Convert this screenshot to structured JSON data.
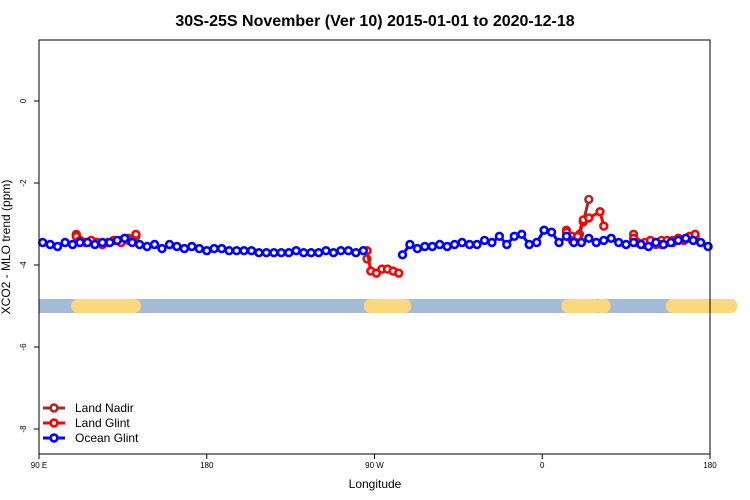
{
  "chart_data": {
    "type": "line",
    "title": "30S-25S November (Ver 10)   2015-01-01 to 2020-12-18",
    "xlabel": "Longitude",
    "ylabel": "XCO2 - MLO trend (ppm)",
    "xlim": [
      90,
      450
    ],
    "ylim": [
      -8.3,
      1.5
    ],
    "x_ticks": [
      {
        "value": 90,
        "label": "90 E"
      },
      {
        "value": 180,
        "label": "180"
      },
      {
        "value": 270,
        "label": "90 W"
      },
      {
        "value": 360,
        "label": "0"
      },
      {
        "value": 450,
        "label": "180"
      }
    ],
    "x_ticks_minor": [
      90,
      450
    ],
    "y_ticks": [
      {
        "value": 0,
        "label": "0"
      },
      {
        "value": -2,
        "label": "-2"
      },
      {
        "value": -4,
        "label": "-4"
      },
      {
        "value": -6,
        "label": "-6"
      },
      {
        "value": -8,
        "label": "-8"
      }
    ],
    "land_mask": {
      "y": -5.0,
      "ocean_color": "#a4bcd8",
      "land_color": "#fcd87c",
      "land_segments": [
        [
          111,
          141
        ],
        [
          268,
          286
        ],
        [
          374,
          388
        ],
        [
          392,
          393
        ],
        [
          430,
          461
        ]
      ]
    },
    "legend_position": "bottom-left",
    "series": [
      {
        "name": "Land Nadir",
        "color": "#a52a2a",
        "x": [
          110,
          112,
          115,
          118,
          121,
          124,
          127,
          130,
          134,
          138,
          142,
          266,
          373,
          376,
          380,
          382,
          385,
          409,
          411,
          415,
          418,
          421,
          424,
          427,
          430,
          433,
          436,
          439,
          442
        ],
        "y": [
          -3.25,
          -3.4,
          -3.45,
          -3.4,
          -3.45,
          -3.5,
          -3.45,
          -3.4,
          -3.4,
          -3.35,
          -3.3,
          -3.85,
          -3.15,
          -3.3,
          -3.25,
          -2.95,
          -2.4,
          -3.25,
          -3.45,
          -3.5,
          -3.45,
          -3.5,
          -3.4,
          -3.45,
          -3.4,
          -3.35,
          -3.4,
          -3.35,
          -3.3
        ]
      },
      {
        "name": "Land Glint",
        "color": "#ff0000",
        "x": [
          110,
          112,
          115,
          118,
          121,
          124,
          127,
          130,
          134,
          138,
          142,
          266,
          268,
          271,
          274,
          277,
          280,
          283,
          373,
          376,
          379,
          382,
          385,
          391,
          393,
          409,
          411,
          415,
          418,
          421,
          424,
          427,
          430,
          433,
          436,
          439,
          442
        ],
        "y": [
          -3.3,
          -3.4,
          -3.45,
          -3.4,
          -3.45,
          -3.5,
          -3.45,
          -3.4,
          -3.45,
          -3.4,
          -3.25,
          -3.65,
          -4.15,
          -4.2,
          -4.1,
          -4.1,
          -4.15,
          -4.2,
          -3.2,
          -3.4,
          -3.3,
          -2.9,
          -2.85,
          -2.7,
          -3.05,
          -3.35,
          -3.45,
          -3.45,
          -3.4,
          -3.45,
          -3.5,
          -3.4,
          -3.45,
          -3.35,
          -3.4,
          -3.3,
          -3.25
        ]
      },
      {
        "name": "Ocean Glint",
        "color": "#0000ff",
        "x": [
          92,
          96,
          100,
          104,
          108,
          112,
          116,
          120,
          124,
          128,
          132,
          136,
          140,
          144,
          148,
          152,
          156,
          160,
          164,
          168,
          172,
          176,
          180,
          184,
          188,
          192,
          196,
          200,
          204,
          208,
          212,
          216,
          220,
          224,
          228,
          232,
          236,
          240,
          244,
          248,
          252,
          256,
          260,
          264,
          285,
          289,
          293,
          297,
          301,
          305,
          309,
          313,
          317,
          321,
          325,
          329,
          333,
          337,
          341,
          345,
          349,
          353,
          357,
          361,
          365,
          369,
          373,
          377,
          381,
          385,
          389,
          393,
          397,
          401,
          405,
          409,
          413,
          417,
          421,
          425,
          429,
          433,
          437,
          441,
          445,
          449
        ],
        "y": [
          -3.45,
          -3.5,
          -3.55,
          -3.45,
          -3.5,
          -3.45,
          -3.45,
          -3.5,
          -3.45,
          -3.45,
          -3.4,
          -3.35,
          -3.45,
          -3.5,
          -3.55,
          -3.5,
          -3.6,
          -3.5,
          -3.55,
          -3.6,
          -3.55,
          -3.6,
          -3.65,
          -3.6,
          -3.6,
          -3.65,
          -3.65,
          -3.65,
          -3.65,
          -3.7,
          -3.7,
          -3.7,
          -3.7,
          -3.7,
          -3.65,
          -3.7,
          -3.7,
          -3.7,
          -3.65,
          -3.7,
          -3.65,
          -3.65,
          -3.7,
          -3.65,
          -3.75,
          -3.5,
          -3.6,
          -3.55,
          -3.55,
          -3.5,
          -3.55,
          -3.5,
          -3.45,
          -3.5,
          -3.5,
          -3.4,
          -3.45,
          -3.3,
          -3.5,
          -3.3,
          -3.25,
          -3.5,
          -3.45,
          -3.15,
          -3.2,
          -3.45,
          -3.3,
          -3.45,
          -3.45,
          -3.35,
          -3.45,
          -3.4,
          -3.35,
          -3.45,
          -3.5,
          -3.45,
          -3.5,
          -3.55,
          -3.45,
          -3.5,
          -3.45,
          -3.4,
          -3.35,
          -3.4,
          -3.45,
          -3.55
        ]
      }
    ]
  }
}
